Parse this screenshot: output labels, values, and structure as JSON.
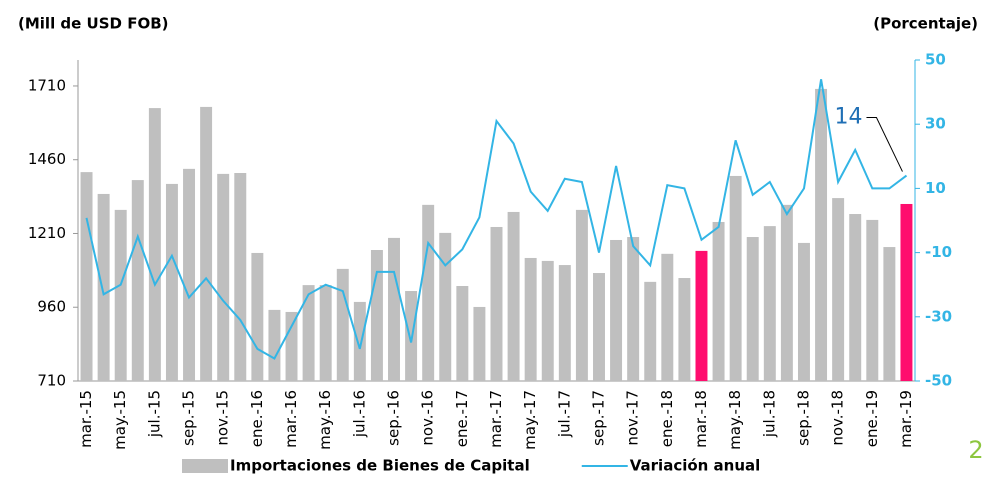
{
  "chart_data": {
    "type": "combo",
    "y_axis_label": "(Mill de USD FOB)",
    "y2_axis_label": "(Porcentaje)",
    "categories": [
      "mar.-15",
      null,
      "may.-15",
      null,
      "jul.-15",
      null,
      "sep.-15",
      null,
      "nov.-15",
      null,
      "ene.-16",
      null,
      "mar.-16",
      null,
      "may.-16",
      null,
      "jul.-16",
      null,
      "sep.-16",
      null,
      "nov.-16",
      null,
      "ene.-17",
      null,
      "mar.-17",
      null,
      "may.-17",
      null,
      "jul.-17",
      null,
      "sep.-17",
      null,
      "nov.-17",
      null,
      "ene.-18",
      null,
      "mar.-18",
      null,
      "may.-18",
      null,
      "jul.-18",
      null,
      "sep.-18",
      null,
      "nov.-18",
      null,
      "ene.-19",
      null,
      "mar.-19"
    ],
    "series": [
      {
        "name": "Importaciones de Bienes de Capital",
        "type": "bar",
        "color": "#bfbfbf",
        "values": [
          1418,
          1344,
          1290,
          1391,
          1635,
          1378,
          1429,
          1639,
          1412,
          1415,
          1144,
          951,
          944,
          1035,
          1035,
          1090,
          978,
          1154,
          1195,
          1015,
          1307,
          1212,
          1032,
          961,
          1232,
          1283,
          1127,
          1117,
          1103,
          1290,
          1076,
          1188,
          1198,
          1046,
          1141,
          1059,
          1151,
          1249,
          1405,
          1198,
          1235,
          1307,
          1178,
          1700,
          1330,
          1276,
          1256,
          1164,
          1310
        ],
        "colors": [
          "#bfbfbf",
          "#bfbfbf",
          "#bfbfbf",
          "#bfbfbf",
          "#bfbfbf",
          "#bfbfbf",
          "#bfbfbf",
          "#bfbfbf",
          "#bfbfbf",
          "#bfbfbf",
          "#bfbfbf",
          "#bfbfbf",
          "#bfbfbf",
          "#bfbfbf",
          "#bfbfbf",
          "#bfbfbf",
          "#bfbfbf",
          "#bfbfbf",
          "#bfbfbf",
          "#bfbfbf",
          "#bfbfbf",
          "#bfbfbf",
          "#bfbfbf",
          "#bfbfbf",
          "#bfbfbf",
          "#bfbfbf",
          "#bfbfbf",
          "#bfbfbf",
          "#bfbfbf",
          "#bfbfbf",
          "#bfbfbf",
          "#bfbfbf",
          "#bfbfbf",
          "#bfbfbf",
          "#bfbfbf",
          "#bfbfbf",
          "#ff0d6e",
          "#bfbfbf",
          "#bfbfbf",
          "#bfbfbf",
          "#bfbfbf",
          "#bfbfbf",
          "#bfbfbf",
          "#bfbfbf",
          "#bfbfbf",
          "#bfbfbf",
          "#bfbfbf",
          "#bfbfbf",
          "#ff0d6e"
        ]
      },
      {
        "name": "Variación anual",
        "type": "line",
        "axis": "y2",
        "color": "#33b5e5",
        "values": [
          0.8,
          -23,
          -20,
          -5,
          -20,
          -11,
          -24,
          -18,
          -25,
          -31,
          -40,
          -43,
          -33,
          -23,
          -20,
          -22,
          -40,
          -16,
          -16,
          -38,
          -7,
          -14,
          -9,
          1,
          31,
          24,
          9,
          3,
          13,
          12,
          -10,
          17,
          -8,
          -14,
          11,
          10,
          -6,
          -2,
          25,
          8,
          12,
          2,
          10,
          44,
          12,
          22,
          10,
          10,
          14
        ]
      }
    ],
    "annotation": "14",
    "ylim": [
      710,
      1798
    ],
    "yticks": [
      710,
      960,
      1210,
      1460,
      1710
    ],
    "y2lim": [
      -50,
      50
    ],
    "y2ticks": [
      -50,
      -30,
      -10,
      10,
      30,
      50
    ],
    "y2_color": "#33b5e5",
    "page_number": "2"
  }
}
